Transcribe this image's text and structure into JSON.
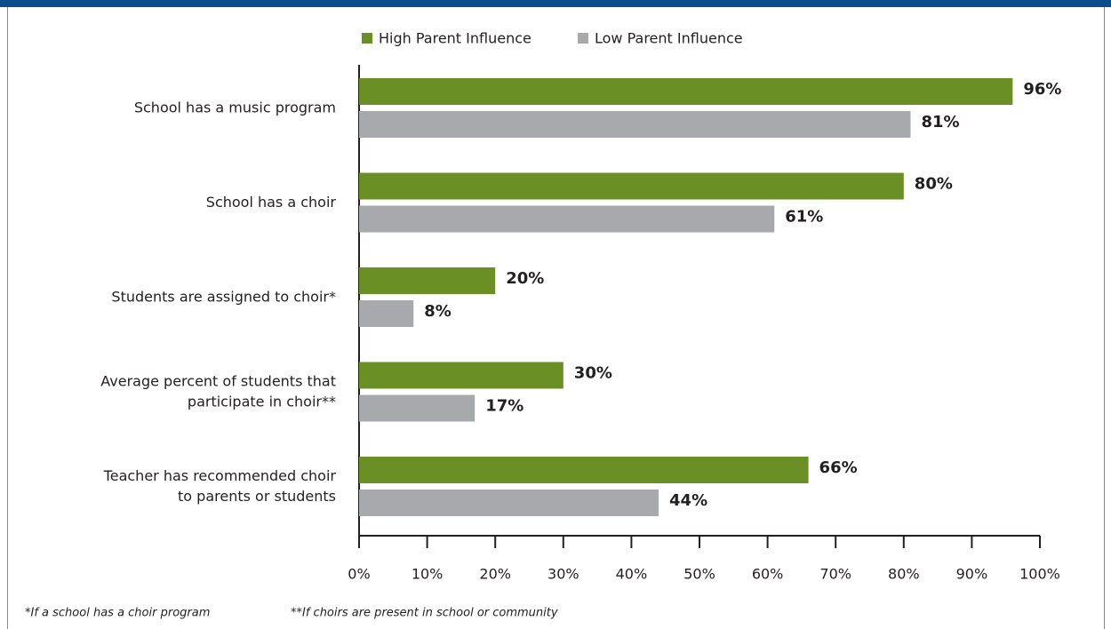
{
  "chart_data": {
    "type": "hbar",
    "categories": [
      "School has a music program",
      "School has a choir",
      "Students are assigned to choir*",
      "Average percent of students that\nparticipate in choir**",
      "Teacher has recommended choir\nto parents or students"
    ],
    "series": [
      {
        "name": "High Parent Influence",
        "color": "#6a8f24",
        "values": [
          96,
          80,
          20,
          30,
          66
        ],
        "value_labels": [
          "96%",
          "80%",
          "20%",
          "30%",
          "66%"
        ]
      },
      {
        "name": "Low Parent Influence",
        "color": "#a7a9ac",
        "values": [
          81,
          61,
          8,
          17,
          44
        ],
        "value_labels": [
          "81%",
          "61%",
          "8%",
          "17%",
          "44%"
        ]
      }
    ],
    "xlim": [
      0,
      100
    ],
    "xticks": [
      {
        "value": 0,
        "label": "0%"
      },
      {
        "value": 10,
        "label": "10%"
      },
      {
        "value": 20,
        "label": "20%"
      },
      {
        "value": 30,
        "label": "30%"
      },
      {
        "value": 40,
        "label": "40%"
      },
      {
        "value": 50,
        "label": "50%"
      },
      {
        "value": 60,
        "label": "60%"
      },
      {
        "value": 70,
        "label": "70%"
      },
      {
        "value": 80,
        "label": "80%"
      },
      {
        "value": 90,
        "label": "90%"
      },
      {
        "value": 100,
        "label": "100%"
      }
    ],
    "legend": "top",
    "footnotes": [
      "*If a school has a choir program",
      "**If choirs are present in school or community"
    ]
  }
}
